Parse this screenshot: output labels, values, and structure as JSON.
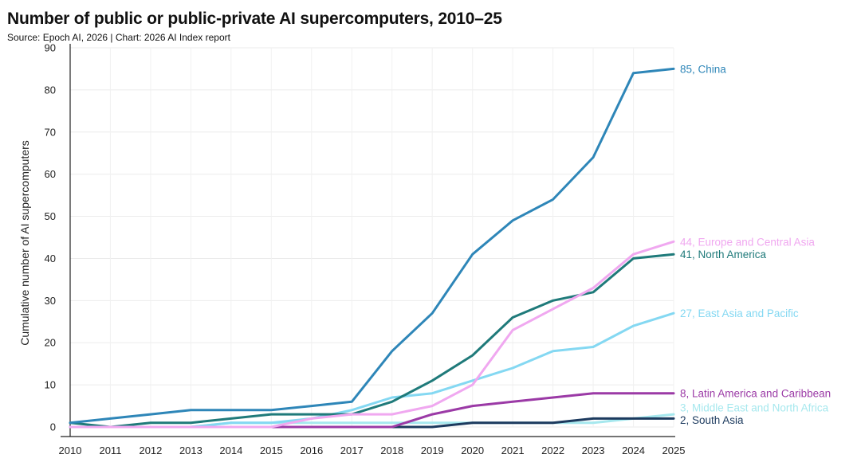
{
  "header": {
    "title": "Number of public or public-private AI supercomputers, 2010–25",
    "subtitle": "Source: Epoch AI, 2026 | Chart: 2026 AI Index report"
  },
  "chart_data": {
    "type": "line",
    "title": "Number of public or public-private AI supercomputers, 2010–25",
    "xlabel": "",
    "ylabel": "Cumulative number of AI supercomputers",
    "x": [
      2010,
      2011,
      2012,
      2013,
      2014,
      2015,
      2016,
      2017,
      2018,
      2019,
      2020,
      2021,
      2022,
      2023,
      2024,
      2025
    ],
    "xlim": [
      2010,
      2025
    ],
    "ylim": [
      0,
      90
    ],
    "yticks": [
      0,
      10,
      20,
      30,
      40,
      50,
      60,
      70,
      80,
      90
    ],
    "grid": true,
    "legend": "end-of-line labels",
    "series": [
      {
        "name": "Middle East and North Africa",
        "label": "3, Middle East and North Africa",
        "color": "#a6e8ee",
        "values": [
          0,
          0,
          0,
          0,
          1,
          1,
          1,
          1,
          1,
          1,
          1,
          1,
          1,
          1,
          2,
          3
        ]
      },
      {
        "name": "South Asia",
        "label": "2, South Asia",
        "color": "#1c3a5e",
        "values": [
          0,
          0,
          0,
          0,
          0,
          0,
          0,
          0,
          0,
          0,
          1,
          1,
          1,
          2,
          2,
          2
        ]
      },
      {
        "name": "Latin America and Caribbean",
        "label": "8, Latin America and Caribbean",
        "color": "#9b3aa6",
        "values": [
          0,
          0,
          0,
          0,
          0,
          0,
          0,
          0,
          0,
          3,
          5,
          6,
          7,
          8,
          8,
          8
        ]
      },
      {
        "name": "East Asia and Pacific",
        "label": "27, East Asia and Pacific",
        "color": "#84d8f2",
        "values": [
          0,
          0,
          0,
          0,
          1,
          1,
          2,
          4,
          7,
          8,
          11,
          14,
          18,
          19,
          24,
          27
        ]
      },
      {
        "name": "North America",
        "label": "41, North America",
        "color": "#1f7a7a",
        "values": [
          1,
          0,
          1,
          1,
          2,
          3,
          3,
          3,
          6,
          11,
          17,
          26,
          30,
          32,
          40,
          41
        ]
      },
      {
        "name": "Europe and Central Asia",
        "label": "44, Europe and Central Asia",
        "color": "#f0a8f0",
        "values": [
          0,
          0,
          0,
          0,
          0,
          0,
          2,
          3,
          3,
          5,
          10,
          23,
          28,
          33,
          41,
          44
        ]
      },
      {
        "name": "China",
        "label": "85, China",
        "color": "#2e86b8",
        "values": [
          1,
          2,
          3,
          4,
          4,
          4,
          5,
          6,
          18,
          27,
          41,
          49,
          54,
          64,
          84,
          85
        ]
      }
    ]
  }
}
